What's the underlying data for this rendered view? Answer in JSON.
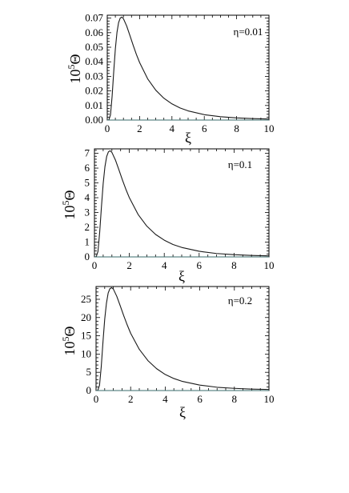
{
  "chart_data": [
    {
      "type": "line",
      "title": "",
      "annotation": "η=0.01",
      "xlabel": "ξ",
      "ylabel_base": "10",
      "ylabel_exp": "5",
      "ylabel_var": "Θ",
      "xlim": [
        0,
        10
      ],
      "ylim": [
        0,
        0.072
      ],
      "xticks": [
        0,
        2,
        4,
        6,
        8,
        10
      ],
      "xtick_labels": [
        "0",
        "2",
        "4",
        "6",
        "8",
        "10"
      ],
      "yticks": [
        0,
        0.01,
        0.02,
        0.03,
        0.04,
        0.05,
        0.06,
        0.07
      ],
      "ytick_labels": [
        "0.00",
        "0.01",
        "0.02",
        "0.03",
        "0.04",
        "0.05",
        "0.06",
        "0.07"
      ],
      "series": [
        {
          "x": [
            0,
            0.1,
            0.2,
            0.3,
            0.4,
            0.5,
            0.6,
            0.7,
            0.8,
            0.9,
            1.0,
            1.2,
            1.4,
            1.6,
            1.8,
            2.0,
            2.5,
            3.0,
            3.5,
            4.0,
            4.5,
            5.0,
            6.0,
            7.0,
            8.0,
            9.0,
            10.0
          ],
          "y": [
            0,
            0.0001,
            0.0036,
            0.0163,
            0.0333,
            0.0488,
            0.0601,
            0.0669,
            0.07,
            0.0707,
            0.0696,
            0.0646,
            0.0581,
            0.0514,
            0.0451,
            0.0395,
            0.0283,
            0.0205,
            0.015,
            0.0111,
            0.0083,
            0.0063,
            0.0037,
            0.0023,
            0.0015,
            0.001,
            0.0007
          ]
        },
        {
          "x": [
            0,
            10
          ],
          "y": [
            0,
            0
          ]
        }
      ]
    },
    {
      "type": "line",
      "title": "",
      "annotation": "η=0.1",
      "xlabel": "ξ",
      "ylabel_base": "10",
      "ylabel_exp": "5",
      "ylabel_var": "Θ",
      "xlim": [
        0,
        10
      ],
      "ylim": [
        0,
        7.3
      ],
      "xticks": [
        0,
        2,
        4,
        6,
        8,
        10
      ],
      "xtick_labels": [
        "0",
        "2",
        "4",
        "6",
        "8",
        "10"
      ],
      "yticks": [
        0,
        1,
        2,
        3,
        4,
        5,
        6,
        7
      ],
      "ytick_labels": [
        "0",
        "1",
        "2",
        "3",
        "4",
        "5",
        "6",
        "7"
      ],
      "series": [
        {
          "x": [
            0,
            0.1,
            0.2,
            0.3,
            0.4,
            0.5,
            0.6,
            0.7,
            0.8,
            0.9,
            1.0,
            1.2,
            1.4,
            1.6,
            1.8,
            2.0,
            2.5,
            3.0,
            3.5,
            4.0,
            4.5,
            5.0,
            6.0,
            7.0,
            8.0,
            9.0,
            10.0
          ],
          "y": [
            0,
            0.01,
            0.36,
            1.66,
            3.38,
            4.95,
            6.09,
            6.78,
            7.1,
            7.17,
            7.06,
            6.55,
            5.89,
            5.21,
            4.57,
            4.0,
            2.87,
            2.08,
            1.52,
            1.13,
            0.84,
            0.64,
            0.38,
            0.23,
            0.15,
            0.1,
            0.07
          ]
        },
        {
          "x": [
            0,
            10
          ],
          "y": [
            0,
            0
          ]
        }
      ]
    },
    {
      "type": "line",
      "title": "",
      "annotation": "η=0.2",
      "xlabel": "ξ",
      "ylabel_base": "10",
      "ylabel_exp": "5",
      "ylabel_var": "Θ",
      "xlim": [
        0,
        10
      ],
      "ylim": [
        0,
        28.5
      ],
      "xticks": [
        0,
        2,
        4,
        6,
        8,
        10
      ],
      "xtick_labels": [
        "0",
        "2",
        "4",
        "6",
        "8",
        "10"
      ],
      "yticks": [
        0,
        5,
        10,
        15,
        20,
        25
      ],
      "ytick_labels": [
        "0",
        "5",
        "10",
        "15",
        "20",
        "25"
      ],
      "series": [
        {
          "x": [
            0,
            0.1,
            0.2,
            0.3,
            0.4,
            0.5,
            0.6,
            0.7,
            0.8,
            0.9,
            1.0,
            1.2,
            1.4,
            1.6,
            1.8,
            2.0,
            2.5,
            3.0,
            3.5,
            4.0,
            4.5,
            5.0,
            6.0,
            7.0,
            8.0,
            9.0,
            10.0
          ],
          "y": [
            0,
            0.03,
            1.43,
            6.52,
            13.3,
            19.5,
            23.9,
            26.7,
            27.9,
            28.2,
            27.8,
            25.8,
            23.2,
            20.5,
            18.0,
            15.7,
            11.3,
            8.2,
            6.0,
            4.4,
            3.3,
            2.5,
            1.5,
            0.9,
            0.6,
            0.4,
            0.3
          ]
        },
        {
          "x": [
            0,
            10
          ],
          "y": [
            0,
            0
          ]
        }
      ]
    }
  ]
}
